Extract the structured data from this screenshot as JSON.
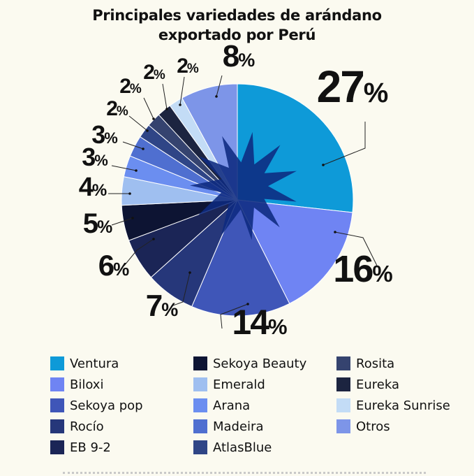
{
  "chart_data": {
    "type": "pie",
    "title": "Principales variedades de arándano exportado por Perú",
    "title_lines": [
      "Principales variedades de arándano",
      "exportado por Perú"
    ],
    "categories": [
      "Ventura",
      "Biloxi",
      "Sekoya pop",
      "Rocío",
      "EB 9-2",
      "Sekoya Beauty",
      "Emerald",
      "Arana",
      "Madeira",
      "AtlasBlue",
      "Rosita",
      "Eureka",
      "Eureka Sunrise",
      "Otros"
    ],
    "values": [
      27,
      16,
      14,
      7,
      6,
      5,
      4,
      3,
      3,
      2,
      2,
      2,
      2,
      8
    ],
    "labels": [
      "27%",
      "16%",
      "14%",
      "7%",
      "6%",
      "5%",
      "4%",
      "3%",
      "3%",
      "2%",
      "2%",
      "2%",
      "2%",
      "8%"
    ],
    "colors": [
      "#0e9ad8",
      "#6f84f3",
      "#3f56b8",
      "#26377a",
      "#1b2556",
      "#0d1433",
      "#9fbff0",
      "#6b8ef0",
      "#4f6fd0",
      "#2f4586",
      "#35436f",
      "#1c2440",
      "#c3dcf6",
      "#7d95e8"
    ],
    "legend_order": [
      [
        "Ventura",
        "Biloxi",
        "Sekoya pop",
        "Rocío",
        "EB 9-2"
      ],
      [
        "Sekoya Beauty",
        "Emerald",
        "Arana",
        "Madeira",
        "AtlasBlue"
      ],
      [
        "Rosita",
        "Eureka",
        "Eureka Sunrise",
        "Otros"
      ]
    ],
    "legend_placement": "bottom",
    "center_star_color": "#0e2a80"
  }
}
